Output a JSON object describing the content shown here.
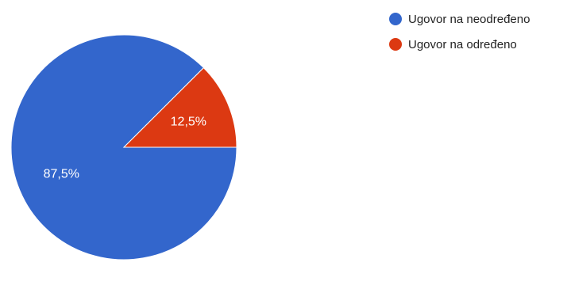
{
  "chart_data": {
    "type": "pie",
    "categories": [
      "Ugovor na neodređeno",
      "Ugovor na određeno"
    ],
    "values": [
      87.5,
      12.5
    ],
    "labels": [
      "87,5%",
      "12,5%"
    ],
    "colors": [
      "#3366cc",
      "#dc3912"
    ],
    "legend": "top-right"
  },
  "legend": {
    "items": [
      {
        "label": "Ugovor na neodređeno",
        "color": "#3366cc"
      },
      {
        "label": "Ugovor na određeno",
        "color": "#dc3912"
      }
    ]
  }
}
